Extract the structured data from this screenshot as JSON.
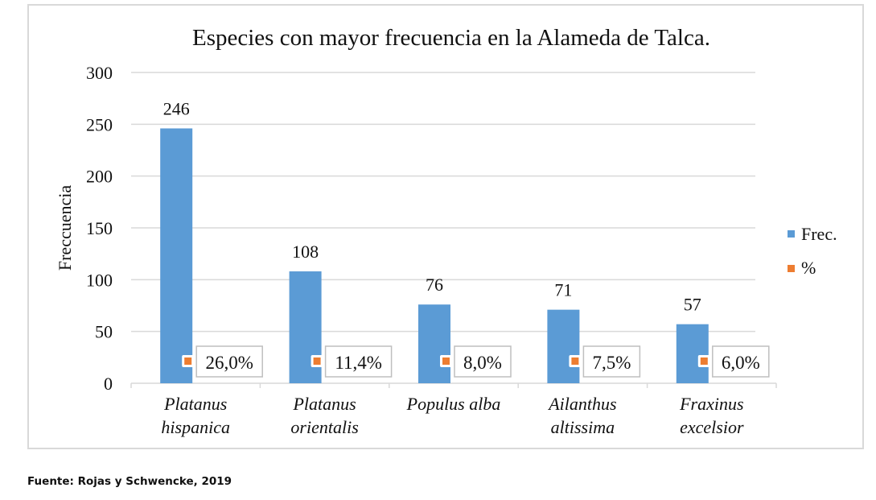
{
  "chart_data": {
    "type": "bar",
    "title": "Especies con mayor frecuencia en la Alameda de Talca.",
    "xlabel": "",
    "ylabel": "Freccuencia",
    "ylim": [
      0,
      300
    ],
    "yticks": [
      0,
      50,
      100,
      150,
      200,
      250,
      300
    ],
    "ytick_labels": [
      "0",
      "50",
      "100",
      "150",
      "200",
      "250",
      "300"
    ],
    "grid": true,
    "legend_position": "right",
    "categories": [
      [
        "Platanus",
        "hispanica"
      ],
      [
        "Platanus",
        "orientalis"
      ],
      [
        "Populus alba"
      ],
      [
        "Ailanthus",
        "altissima"
      ],
      [
        "Fraxinus",
        "excelsior"
      ]
    ],
    "series": [
      {
        "name": "Frec.",
        "type": "bar",
        "color": "#5b9bd5",
        "values": [
          246,
          108,
          76,
          71,
          57
        ],
        "data_labels": [
          "246",
          "108",
          "76",
          "71",
          "57"
        ]
      },
      {
        "name": "%",
        "type": "marker",
        "color": "#ed7d31",
        "values": [
          26.0,
          11.4,
          8.0,
          7.5,
          6.0
        ],
        "data_labels": [
          "26,0%",
          "11,4%",
          "8,0%",
          "7,5%",
          "6,0%"
        ]
      }
    ]
  },
  "source": "Fuente: Rojas y Schwencke, 2019"
}
